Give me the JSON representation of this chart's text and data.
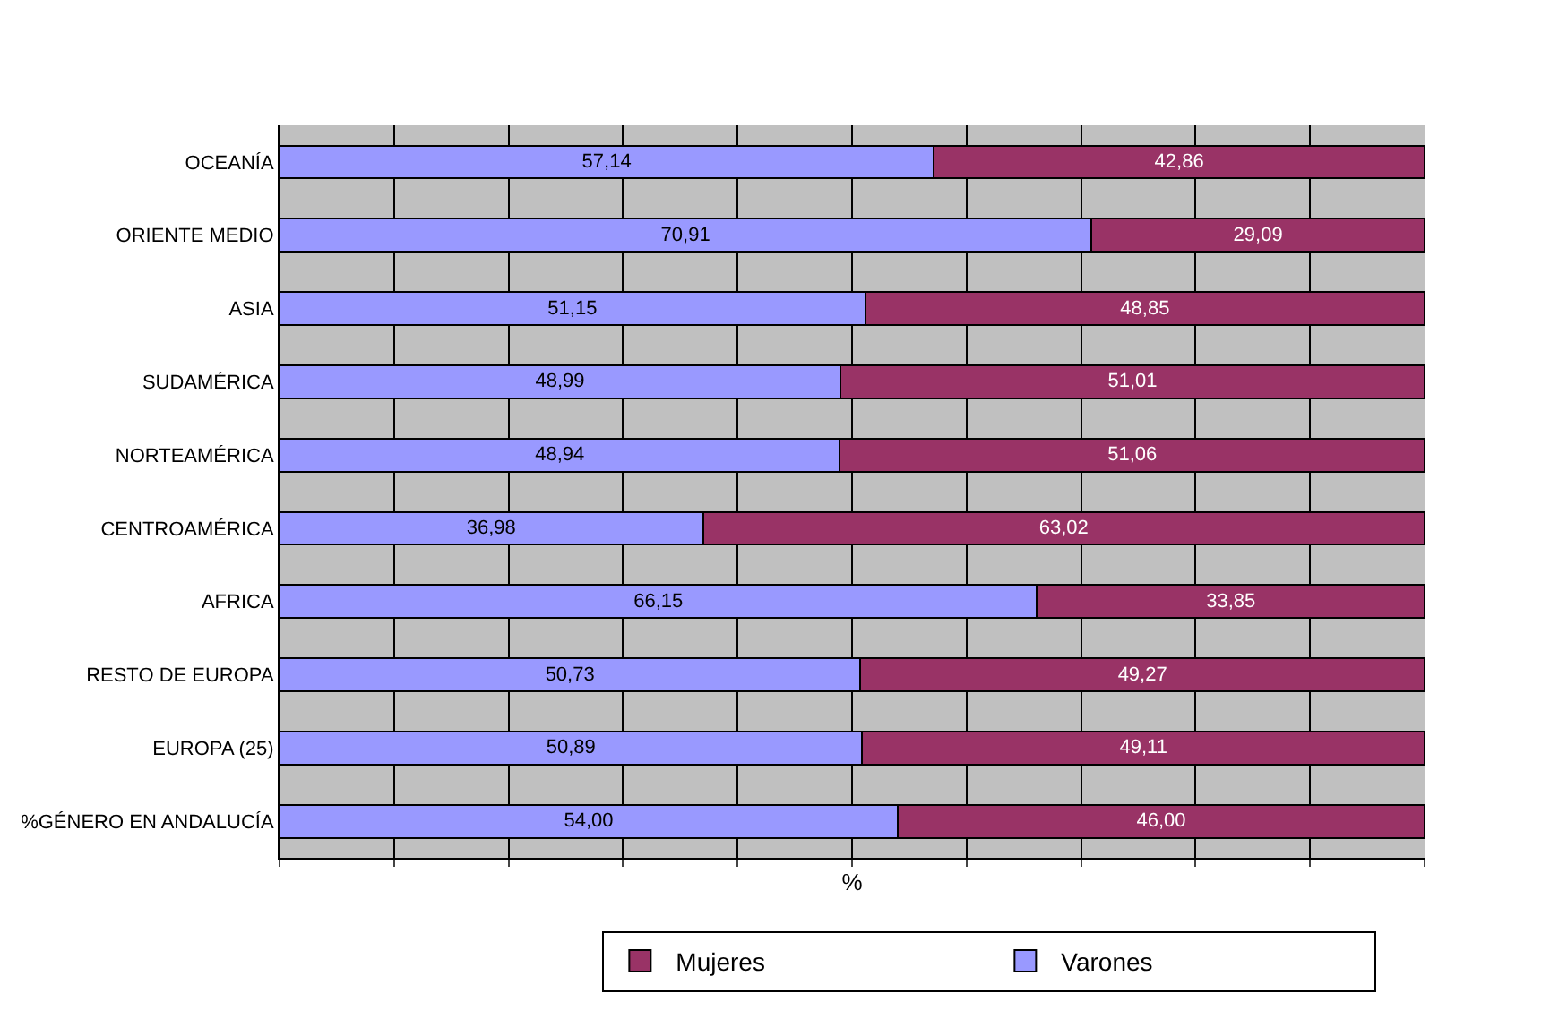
{
  "chart_data": {
    "type": "bar",
    "orientation": "horizontal",
    "stacked": true,
    "xlabel": "%",
    "categories": [
      "OCEANÍA",
      "ORIENTE MEDIO",
      "ASIA",
      "SUDAMÉRICA",
      "NORTEAMÉRICA",
      "CENTROAMÉRICA",
      "AFRICA",
      "RESTO DE EUROPA",
      "EUROPA (25)",
      "%GÉNERO EN ANDALUCÍA"
    ],
    "series": [
      {
        "name": "Varones",
        "color": "#9999ff",
        "values": [
          57.14,
          70.91,
          51.15,
          48.99,
          48.94,
          36.98,
          66.15,
          50.73,
          50.89,
          54.0
        ],
        "value_labels": [
          "57,14",
          "70,91",
          "51,15",
          "48,99",
          "48,94",
          "36,98",
          "66,15",
          "50,73",
          "50,89",
          "54,00"
        ]
      },
      {
        "name": "Mujeres",
        "color": "#993366",
        "values": [
          42.86,
          29.09,
          48.85,
          51.01,
          51.06,
          63.02,
          33.85,
          49.27,
          49.11,
          46.0
        ],
        "value_labels": [
          "42,86",
          "29,09",
          "48,85",
          "51,01",
          "51,06",
          "63,02",
          "33,85",
          "49,27",
          "49,11",
          "46,00"
        ]
      }
    ],
    "xlim": [
      0,
      100
    ],
    "xticks": [
      {
        "value": 0,
        "label": null
      },
      {
        "value": 10,
        "label": null
      },
      {
        "value": 20,
        "label": null
      },
      {
        "value": 30,
        "label": null
      },
      {
        "value": 40,
        "label": null
      },
      {
        "value": 50,
        "label": null
      },
      {
        "value": 60,
        "label": null
      },
      {
        "value": 70,
        "label": null
      },
      {
        "value": 80,
        "label": null
      },
      {
        "value": 90,
        "label": null
      },
      {
        "value": 100,
        "label": null
      }
    ],
    "grid": "x",
    "legend": "bottom"
  }
}
